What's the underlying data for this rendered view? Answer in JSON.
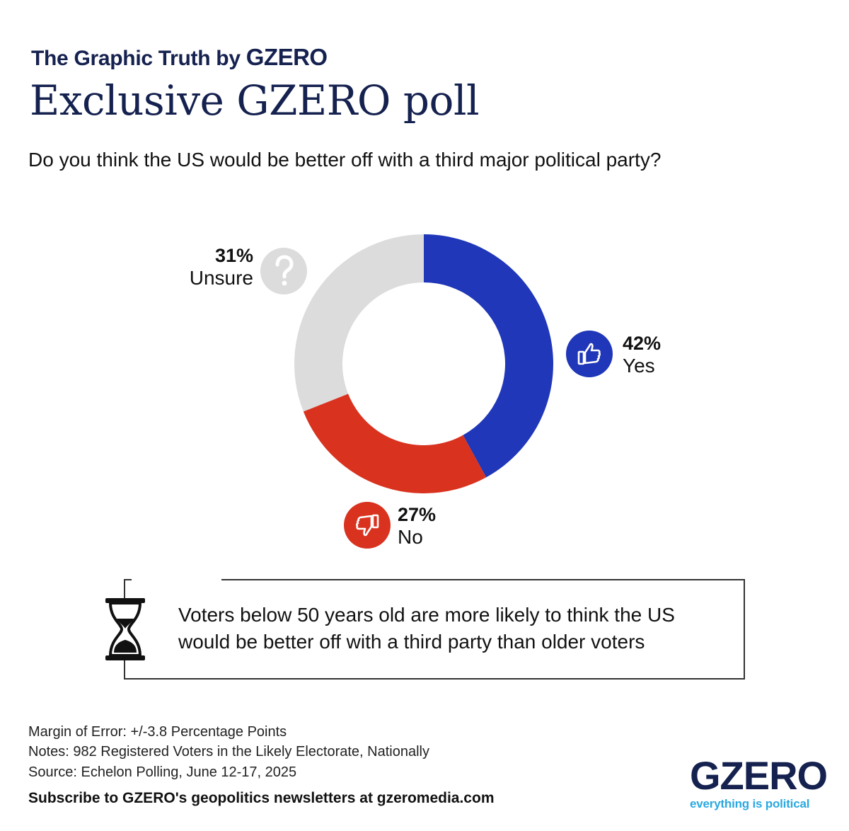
{
  "header": {
    "brand_prefix": "The Graphic Truth by",
    "brand_name": "GZERO",
    "title": "Exclusive GZERO poll",
    "question": "Do you think the US would be better off with a third major political party?"
  },
  "chart_data": {
    "type": "pie",
    "variant": "donut",
    "title": "",
    "slices": [
      {
        "label": "Yes",
        "value": 42,
        "display": "42%",
        "color": "#1f37b8",
        "icon": "thumbs-up-icon"
      },
      {
        "label": "No",
        "value": 27,
        "display": "27%",
        "color": "#d9321f",
        "icon": "thumbs-down-icon"
      },
      {
        "label": "Unsure",
        "value": 31,
        "display": "31%",
        "color": "#dcdcdc",
        "icon": "question-mark-icon"
      }
    ],
    "start": "12 o'clock",
    "direction": "clockwise"
  },
  "callout": {
    "icon": "hourglass-icon",
    "text": "Voters below 50 years old are more likely to think the US would be better off with a third party than older voters"
  },
  "footer": {
    "margin_of_error": "Margin of Error: +/-3.8 Percentage Points",
    "notes": "Notes: 982 Registered Voters in the Likely Electorate, Nationally",
    "source": "Source: Echelon Polling,  June 12-17, 2025",
    "subscribe": "Subscribe to GZERO's geopolitics newsletters at gzeromedia.com",
    "logo_word": "GZERO",
    "logo_tagline": "everything is political"
  },
  "colors": {
    "navy": "#15214f",
    "blue": "#1f37b8",
    "red": "#d9321f",
    "gray": "#dcdcdc",
    "cyan": "#2aa8e0"
  }
}
